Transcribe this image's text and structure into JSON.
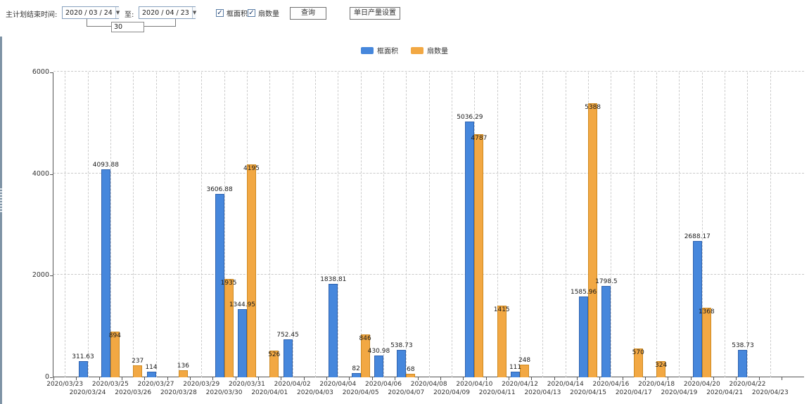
{
  "toolbar": {
    "range_label": "主计划结束时间:",
    "date_from": "2020 / 03 / 24",
    "to_label": "至:",
    "date_to": "2020 / 04 / 23",
    "days_value": "30",
    "checkbox_frame_area": "框面积",
    "checkbox_frame_area_checked": true,
    "checkbox_fan_count": "扇数量",
    "checkbox_fan_count_checked": true,
    "query_button": "查询",
    "daily_output_button": "单日产量设置",
    "check_glyph": "✓",
    "dropdown_arrow_glyph": "▼"
  },
  "chart_data": {
    "type": "bar",
    "title": "",
    "xlabel": "",
    "ylabel": "",
    "ylim": [
      0,
      6000
    ],
    "yticks": [
      0,
      2000,
      4000,
      6000
    ],
    "grid": "dashed",
    "legend_position": "top-center",
    "categories": [
      "2020/03/23",
      "2020/03/24",
      "2020/03/25",
      "2020/03/26",
      "2020/03/27",
      "2020/03/28",
      "2020/03/29",
      "2020/03/30",
      "2020/03/31",
      "2020/04/01",
      "2020/04/02",
      "2020/04/03",
      "2020/04/04",
      "2020/04/05",
      "2020/04/06",
      "2020/04/07",
      "2020/04/08",
      "2020/04/09",
      "2020/04/10",
      "2020/04/11",
      "2020/04/12",
      "2020/04/13",
      "2020/04/14",
      "2020/04/15",
      "2020/04/16",
      "2020/04/17",
      "2020/04/18",
      "2020/04/19",
      "2020/04/20",
      "2020/04/21",
      "2020/04/22",
      "2020/04/23"
    ],
    "series": [
      {
        "name": "框面积",
        "key": "frame-area",
        "color": "#4687dc",
        "border_color": "#2f63b0",
        "values": [
          null,
          311.63,
          4093.88,
          null,
          114,
          null,
          null,
          3606.88,
          1344.95,
          null,
          752.45,
          null,
          1838.81,
          82,
          430.98,
          538.73,
          null,
          null,
          5036.29,
          null,
          111,
          null,
          null,
          1585.96,
          1798.5,
          null,
          null,
          null,
          2688.17,
          null,
          538.73,
          null
        ]
      },
      {
        "name": "扇数量",
        "key": "fan-count",
        "color": "#f2a843",
        "border_color": "#cf8a21",
        "values": [
          null,
          null,
          894,
          237,
          null,
          136,
          null,
          1935,
          4195,
          526,
          null,
          null,
          null,
          846,
          null,
          68,
          null,
          null,
          4787,
          1415,
          248,
          null,
          null,
          5388,
          null,
          570,
          324,
          null,
          1368,
          null,
          null,
          null
        ]
      }
    ]
  }
}
